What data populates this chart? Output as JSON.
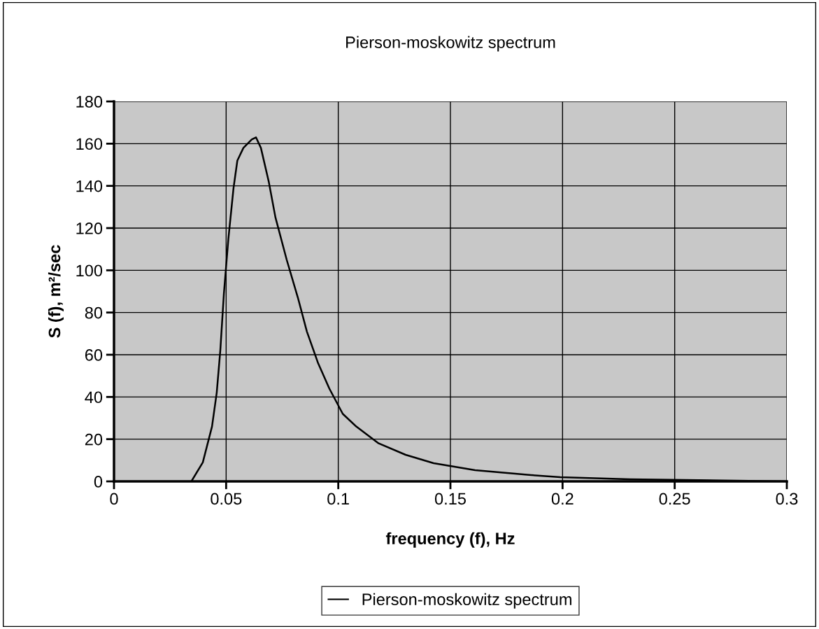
{
  "chart_data": {
    "type": "line",
    "title": "Pierson-moskowitz spectrum",
    "xlabel": "frequency (f), Hz",
    "ylabel": "S (f), m²/sec",
    "series": [
      {
        "name": "Pierson-moskowitz spectrum",
        "color": "#000000",
        "x": [
          0.0345,
          0.0396,
          0.0437,
          0.0458,
          0.0474,
          0.049,
          0.051,
          0.0533,
          0.055,
          0.0577,
          0.0614,
          0.0633,
          0.0655,
          0.069,
          0.072,
          0.077,
          0.082,
          0.086,
          0.091,
          0.096,
          0.102,
          0.108,
          0.118,
          0.13,
          0.1425,
          0.161,
          0.186,
          0.199,
          0.23,
          0.3
        ],
        "values": [
          0,
          9,
          26,
          42,
          62,
          89,
          115,
          139,
          152,
          158,
          162,
          163,
          158,
          142,
          125,
          105,
          87,
          71,
          56,
          44,
          32,
          26,
          18,
          12.6,
          8.6,
          5.3,
          3,
          2,
          1,
          0
        ]
      }
    ],
    "xlim": [
      0,
      0.3
    ],
    "xticks": [
      0,
      0.05,
      0.1,
      0.15,
      0.2,
      0.25,
      0.3
    ],
    "ylim": [
      0,
      180
    ],
    "yticks": [
      0,
      20,
      40,
      60,
      80,
      100,
      120,
      140,
      160,
      180
    ],
    "grid": true,
    "legend": "bottom",
    "marker": "none",
    "line_style": "solid"
  }
}
